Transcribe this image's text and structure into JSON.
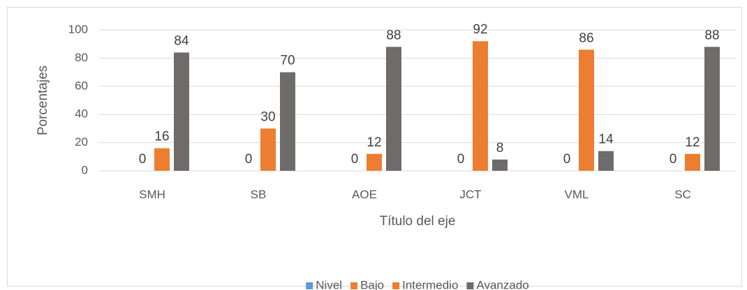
{
  "chart_data": {
    "type": "bar",
    "xlabel": "Título del eje",
    "ylabel": "Porcentajes",
    "categories": [
      "SMH",
      "SB",
      "AOE",
      "JCT",
      "VML",
      "SC"
    ],
    "series": [
      {
        "name": "Nivel",
        "color": "#5b9bd5",
        "values": [
          null,
          null,
          null,
          null,
          null,
          null
        ]
      },
      {
        "name": "Bajo",
        "color": "#ed7d31",
        "values": [
          0,
          0,
          0,
          0,
          0,
          0
        ]
      },
      {
        "name": "Intermedio",
        "color": "#ed7d31",
        "values": [
          16,
          30,
          12,
          92,
          86,
          12
        ]
      },
      {
        "name": "Avanzado",
        "color": "#6f6b6b",
        "values": [
          84,
          70,
          88,
          8,
          14,
          88
        ]
      }
    ],
    "ylim": [
      0,
      100
    ],
    "yticks": [
      0,
      20,
      40,
      60,
      80,
      100
    ],
    "grid": true,
    "legend": "bottom"
  }
}
